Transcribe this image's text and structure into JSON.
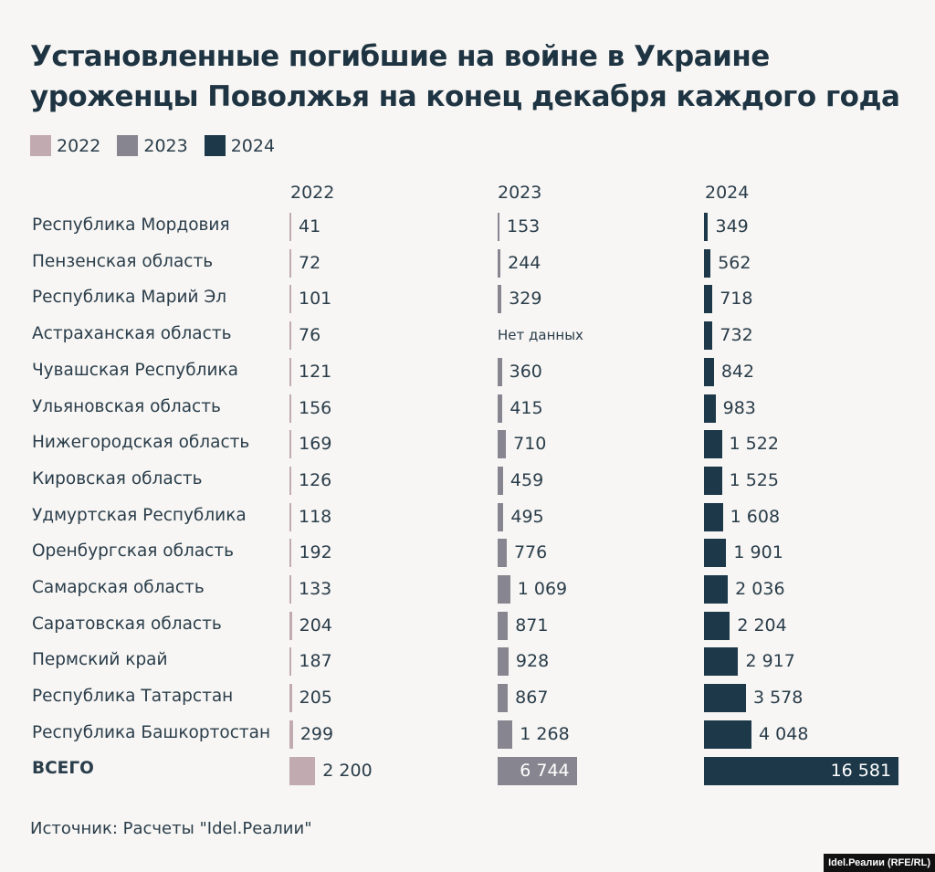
{
  "chart_data": {
    "type": "bar",
    "title": "Установленные погибшие на войне в Украине уроженцы Поволжья на конец декабря каждого года",
    "legend": [
      "2022",
      "2023",
      "2024"
    ],
    "legend_position": "top-left",
    "colors": {
      "2022": "#c1aab0",
      "2023": "#878690",
      "2024": "#1c3849"
    },
    "categories": [
      "Республика Мордовия",
      "Пензенская область",
      "Республика Марий Эл",
      "Астраханская область",
      "Чувашская Республика",
      "Ульяновская область",
      "Нижегородская область",
      "Кировская область",
      "Удмуртская Республика",
      "Оренбургская область",
      "Самарская область",
      "Саратовская область",
      "Пермский край",
      "Республика Татарстан",
      "Республика Башкортостан"
    ],
    "series": [
      {
        "name": "2022",
        "values": [
          41,
          72,
          101,
          76,
          121,
          156,
          169,
          126,
          118,
          192,
          133,
          204,
          187,
          205,
          299
        ],
        "labels": [
          "41",
          "72",
          "101",
          "76",
          "121",
          "156",
          "169",
          "126",
          "118",
          "192",
          "133",
          "204",
          "187",
          "205",
          "299"
        ],
        "total": 2200,
        "total_label": "2 200"
      },
      {
        "name": "2023",
        "values": [
          153,
          244,
          329,
          null,
          360,
          415,
          710,
          459,
          495,
          776,
          1069,
          871,
          928,
          867,
          1268
        ],
        "labels": [
          "153",
          "244",
          "329",
          "Нет данных",
          "360",
          "415",
          "710",
          "459",
          "495",
          "776",
          "1 069",
          "871",
          "928",
          "867",
          "1 268"
        ],
        "total": 6744,
        "total_label": "6 744"
      },
      {
        "name": "2024",
        "values": [
          349,
          562,
          718,
          732,
          842,
          983,
          1522,
          1525,
          1608,
          1901,
          2036,
          2204,
          2917,
          3578,
          4048
        ],
        "labels": [
          "349",
          "562",
          "718",
          "732",
          "842",
          "983",
          "1 522",
          "1 525",
          "1 608",
          "1 901",
          "2 036",
          "2 204",
          "2 917",
          "3 578",
          "4 048"
        ],
        "total": 16581,
        "total_label": "16 581"
      }
    ],
    "total_label": "ВСЕГО"
  },
  "title_lines": [
    "Установленные погибшие на войне в Украине",
    "уроженцы Поволжья на конец декабря каждого года"
  ],
  "source": "Источник: Расчеты \"Idel.Реалии\"",
  "credit": "Idel.Реалии (RFE/RL)"
}
